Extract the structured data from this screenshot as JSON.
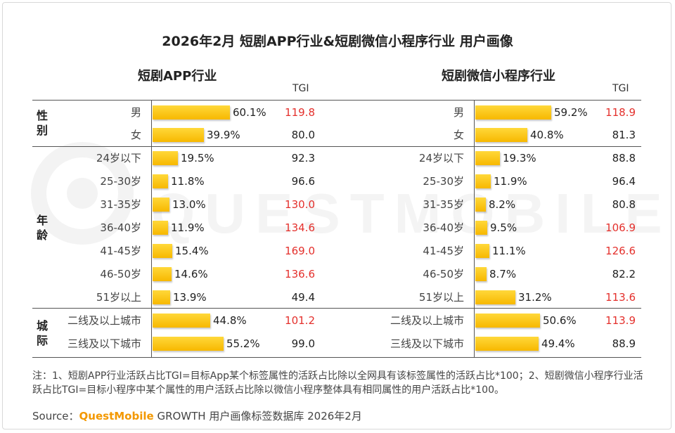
{
  "title": "2026年2月 短剧APP行业&短剧微信小程序行业 用户画像",
  "watermark": "QUESTMOBILE",
  "groups": [
    {
      "label_lines": [
        "性",
        "别"
      ]
    },
    {
      "label_lines": [
        "年",
        "龄"
      ]
    },
    {
      "label_lines": [
        "城",
        "际"
      ]
    }
  ],
  "tgi_header": "TGI",
  "colors": {
    "bar": "#f7b800",
    "tgi_high": "#e4302c",
    "tgi_normal": "#222222"
  },
  "chart_data": [
    {
      "type": "bar",
      "title": "短剧APP行业",
      "categories": [
        "男",
        "女",
        "24岁以下",
        "25-30岁",
        "31-35岁",
        "36-40岁",
        "41-45岁",
        "46-50岁",
        "51岁以上",
        "二线及以上城市",
        "三线及以下城市"
      ],
      "series": [
        {
          "values": [
            60.1,
            39.9,
            19.5,
            11.8,
            13.0,
            11.9,
            15.4,
            14.6,
            13.9,
            44.8,
            55.2
          ],
          "labels": [
            "60.1%",
            "39.9%",
            "19.5%",
            "11.8%",
            "13.0%",
            "11.9%",
            "15.4%",
            "14.6%",
            "13.9%",
            "44.8%",
            "55.2%"
          ]
        }
      ],
      "tgi": [
        "119.8",
        "80.0",
        "92.3",
        "96.6",
        "130.0",
        "134.6",
        "169.0",
        "136.6",
        "49.4",
        "101.2",
        "99.0"
      ]
    },
    {
      "type": "bar",
      "title": "短剧微信小程序行业",
      "categories": [
        "男",
        "女",
        "24岁以下",
        "25-30岁",
        "31-35岁",
        "36-40岁",
        "41-45岁",
        "46-50岁",
        "51岁以上",
        "二线及以上城市",
        "三线及以下城市"
      ],
      "series": [
        {
          "values": [
            59.2,
            40.8,
            19.3,
            11.9,
            8.2,
            9.5,
            11.1,
            8.7,
            31.2,
            50.6,
            49.4
          ],
          "labels": [
            "59.2%",
            "40.8%",
            "19.3%",
            "11.9%",
            "8.2%",
            "9.5%",
            "11.1%",
            "8.7%",
            "31.2%",
            "50.6%",
            "49.4%"
          ]
        }
      ],
      "tgi": [
        "118.9",
        "81.3",
        "88.8",
        "96.4",
        "80.8",
        "106.9",
        "126.6",
        "82.2",
        "113.6",
        "113.9",
        "88.9"
      ]
    }
  ],
  "note": "注：1、短剧APP行业活跃占比TGI=目标App某个标签属性的活跃占比除以全网具有该标签属性的活跃占比*100；2、短剧微信小程序行业活跃占比TGI=目标小程序中某个属性的用户活跃占比除以微信小程序整体具有相同属性的用户活跃占比*100。",
  "source": {
    "prefix": "Source：",
    "brand": "QuestMobile",
    "suffix": " GROWTH 用户画像标签数据库 2026年2月"
  }
}
